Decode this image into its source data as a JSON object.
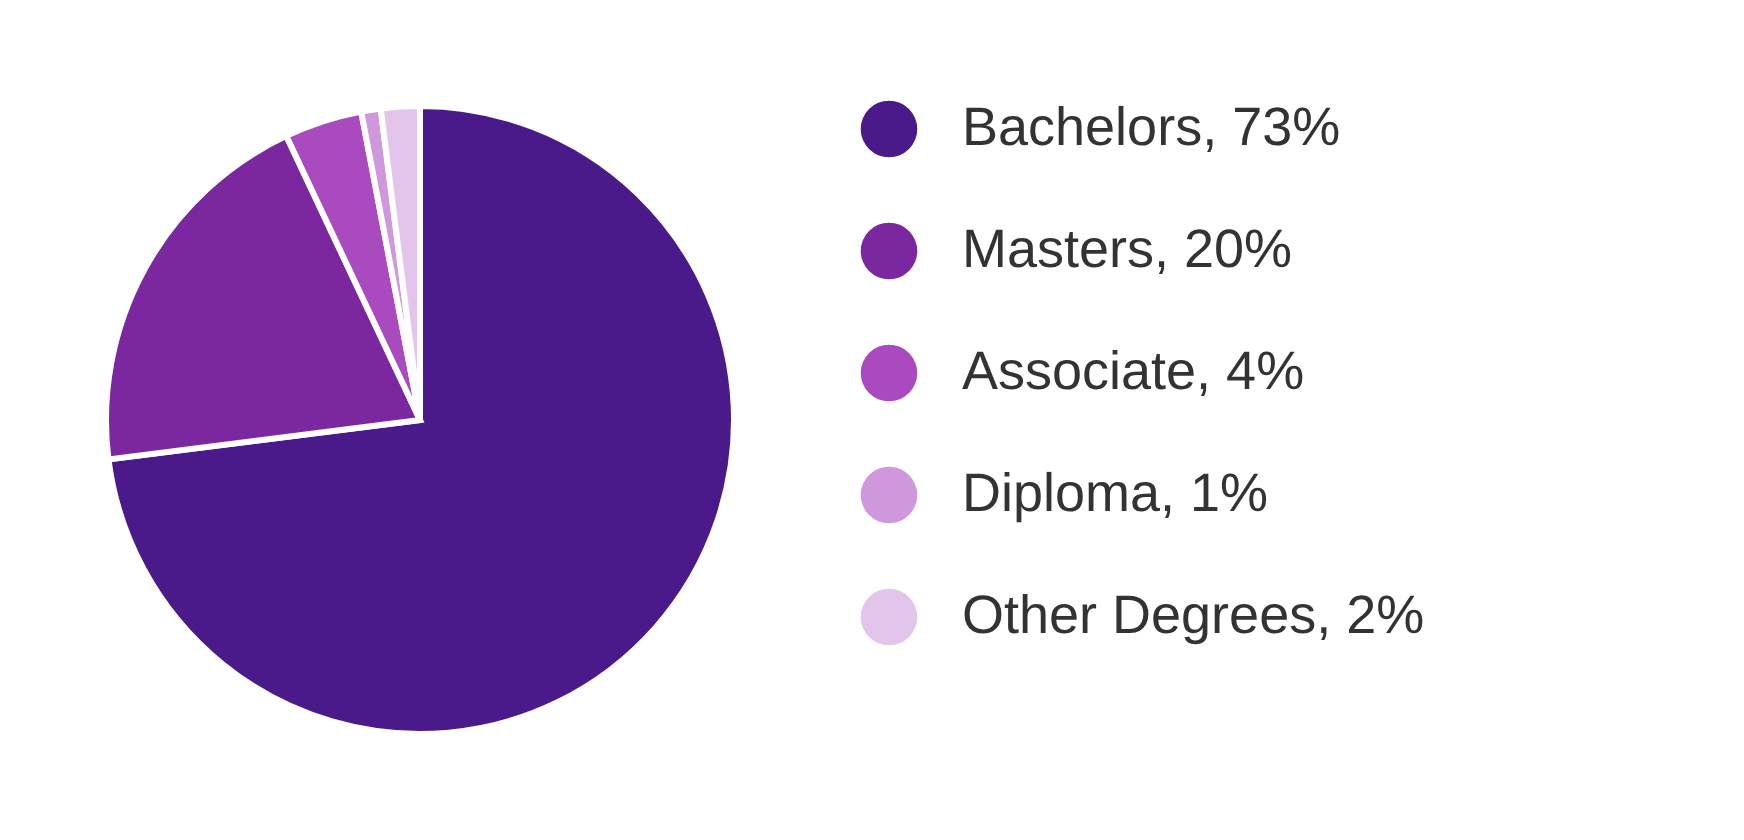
{
  "chart_data": {
    "type": "pie",
    "categories": [
      "Bachelors, 73%",
      "Masters, 20%",
      "Associate, 4%",
      "Diploma, 1%",
      "Other Degrees, 2%"
    ],
    "values": [
      73,
      20,
      4,
      1,
      2
    ],
    "colors": [
      "#4a1a8a",
      "#7b27a0",
      "#a94bbf",
      "#cf98dc",
      "#e3c4ea"
    ],
    "legend": "right"
  }
}
